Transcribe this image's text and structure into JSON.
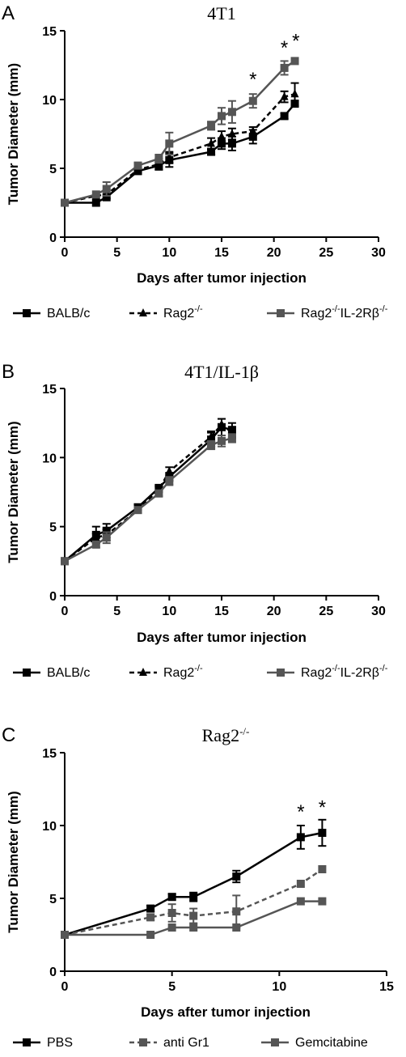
{
  "colors": {
    "black": "#000000",
    "gray": "#555555"
  },
  "chart_data": [
    {
      "panel": "A",
      "title": "4T1",
      "type": "line",
      "xlabel": "Days after tumor injection",
      "ylabel": "Tumor Diameter (mm)",
      "xlim": [
        0,
        30
      ],
      "ylim": [
        0,
        15
      ],
      "xticks": [
        0,
        5,
        10,
        15,
        20,
        25,
        30
      ],
      "yticks": [
        0,
        5,
        10,
        15
      ],
      "legend_position": "bottom",
      "series": [
        {
          "name": "BALB/c",
          "legend_base": "BALB/c",
          "legend_sup": "",
          "legend_mid": "",
          "legend_sup2": "",
          "color": "#000000",
          "dash": "solid",
          "marker": "square",
          "x": [
            0,
            3,
            4,
            7,
            9,
            10,
            14,
            15,
            16,
            18,
            21,
            22
          ],
          "y": [
            2.5,
            2.5,
            2.9,
            4.8,
            5.2,
            5.6,
            6.2,
            6.8,
            6.8,
            7.3,
            8.8,
            9.7
          ],
          "err": [
            0,
            0,
            0,
            0.2,
            0.3,
            0.5,
            0.2,
            0.4,
            0.5,
            0.5,
            0.2,
            0.2
          ]
        },
        {
          "name": "Rag2-/-",
          "legend_base": "Rag2",
          "legend_sup": "-/-",
          "legend_mid": "",
          "legend_sup2": "",
          "color": "#000000",
          "dash": "dashed",
          "marker": "triangle",
          "x": [
            0,
            3,
            4,
            7,
            9,
            10,
            14,
            15,
            16,
            18,
            21,
            22
          ],
          "y": [
            2.5,
            3.0,
            3.1,
            4.9,
            5.3,
            5.8,
            6.8,
            7.3,
            7.5,
            7.7,
            10.2,
            10.4
          ],
          "err": [
            0,
            0,
            0.3,
            0.2,
            0.4,
            0.4,
            0.4,
            0.4,
            0.4,
            0.3,
            0.4,
            0.8
          ]
        },
        {
          "name": "Rag2-/-IL-2Rβ-/-",
          "legend_base": "Rag2",
          "legend_sup": "-/-",
          "legend_mid": "IL-2Rβ",
          "legend_sup2": "-/-",
          "color": "#555555",
          "dash": "solid",
          "marker": "square",
          "x": [
            0,
            3,
            4,
            7,
            9,
            10,
            14,
            15,
            16,
            18,
            21,
            22
          ],
          "y": [
            2.5,
            3.1,
            3.5,
            5.2,
            5.7,
            6.8,
            8.1,
            8.8,
            9.1,
            9.9,
            12.3,
            12.8
          ],
          "err": [
            0,
            0,
            0.5,
            0.2,
            0.3,
            0.8,
            0.3,
            0.6,
            0.8,
            0.5,
            0.5,
            0
          ]
        }
      ],
      "annotations": [
        {
          "text": "*",
          "x": 18,
          "y": 11.0
        },
        {
          "text": "*",
          "x": 21,
          "y": 13.3
        },
        {
          "text": "*",
          "x": 22.1,
          "y": 13.8
        }
      ]
    },
    {
      "panel": "B",
      "title": "4T1/IL-1β",
      "type": "line",
      "xlabel": "Days after tumor injection",
      "ylabel": "Tumor Diameter (mm)",
      "xlim": [
        0,
        30
      ],
      "ylim": [
        0,
        15
      ],
      "xticks": [
        0,
        5,
        10,
        15,
        20,
        25,
        30
      ],
      "yticks": [
        0,
        5,
        10,
        15
      ],
      "legend_position": "bottom",
      "series": [
        {
          "name": "BALB/c",
          "legend_base": "BALB/c",
          "legend_sup": "",
          "legend_mid": "",
          "legend_sup2": "",
          "color": "#000000",
          "dash": "solid",
          "marker": "square",
          "x": [
            0,
            3,
            4,
            7,
            9,
            10,
            14,
            15,
            16
          ],
          "y": [
            2.5,
            4.4,
            4.7,
            6.4,
            7.8,
            8.6,
            11.3,
            12.2,
            12.0
          ],
          "err": [
            0,
            0.6,
            0.5,
            0.2,
            0.2,
            0.3,
            0.5,
            0.6,
            0.5
          ]
        },
        {
          "name": "Rag2-/-",
          "legend_base": "Rag2",
          "legend_sup": "-/-",
          "legend_mid": "",
          "legend_sup2": "",
          "color": "#000000",
          "dash": "dashed",
          "marker": "triangle",
          "x": [
            0,
            3,
            4,
            7,
            9,
            10,
            14,
            15,
            16
          ],
          "y": [
            2.5,
            4.2,
            4.4,
            6.2,
            7.7,
            9.0,
            11.5,
            12.4,
            11.8
          ],
          "err": [
            0,
            0.3,
            0.4,
            0.2,
            0.2,
            0.3,
            0.4,
            0.4,
            0.4
          ]
        },
        {
          "name": "Rag2-/-IL-2Rβ-/-",
          "legend_base": "Rag2",
          "legend_sup": "-/-",
          "legend_mid": "IL-2Rβ",
          "legend_sup2": "-/-",
          "color": "#555555",
          "dash": "solid",
          "marker": "square",
          "x": [
            0,
            3,
            4,
            7,
            9,
            10,
            14,
            15,
            16
          ],
          "y": [
            2.5,
            3.7,
            4.2,
            6.2,
            7.4,
            8.3,
            10.9,
            11.2,
            11.4
          ],
          "err": [
            0,
            0.2,
            0.4,
            0.2,
            0.2,
            0.3,
            0.3,
            0.4,
            0.3
          ]
        }
      ],
      "annotations": []
    },
    {
      "panel": "C",
      "title": "Rag2",
      "title_sup": "-/-",
      "type": "line",
      "xlabel": "Days after tumor injection",
      "ylabel": "Tumor Diameter (mm)",
      "xlim": [
        0,
        15
      ],
      "ylim": [
        0,
        15
      ],
      "xticks": [
        0,
        5,
        10,
        15
      ],
      "yticks": [
        0,
        5,
        10,
        15
      ],
      "legend_position": "bottom",
      "series": [
        {
          "name": "PBS",
          "legend_base": "PBS",
          "legend_sup": "",
          "legend_mid": "",
          "legend_sup2": "",
          "color": "#000000",
          "dash": "solid",
          "marker": "square",
          "x": [
            0,
            4,
            5,
            6,
            8,
            11,
            12
          ],
          "y": [
            2.5,
            4.3,
            5.1,
            5.1,
            6.5,
            9.2,
            9.5
          ],
          "err": [
            0,
            0.2,
            0.2,
            0.3,
            0.4,
            0.8,
            0.9
          ]
        },
        {
          "name": "anti Gr1",
          "legend_base": "anti Gr1",
          "legend_sup": "",
          "legend_mid": "",
          "legend_sup2": "",
          "color": "#555555",
          "dash": "dashed",
          "marker": "square",
          "x": [
            0,
            4,
            5,
            6,
            8,
            11,
            12
          ],
          "y": [
            2.5,
            3.7,
            4.0,
            3.8,
            4.1,
            6.0,
            7.0
          ],
          "err": [
            0,
            0.2,
            0.6,
            0.5,
            1.1,
            0,
            0
          ]
        },
        {
          "name": "Gemcitabine",
          "legend_base": "Gemcitabine",
          "legend_sup": "",
          "legend_mid": "",
          "legend_sup2": "",
          "color": "#555555",
          "dash": "solid",
          "marker": "square",
          "x": [
            0,
            4,
            5,
            6,
            8,
            11,
            12
          ],
          "y": [
            2.5,
            2.5,
            3.0,
            3.0,
            3.0,
            4.8,
            4.8
          ],
          "err": [
            0,
            0,
            0,
            0,
            0,
            0,
            0
          ]
        }
      ],
      "annotations": [
        {
          "text": "*",
          "x": 11,
          "y": 10.5
        },
        {
          "text": "*",
          "x": 12,
          "y": 10.8
        }
      ]
    }
  ]
}
